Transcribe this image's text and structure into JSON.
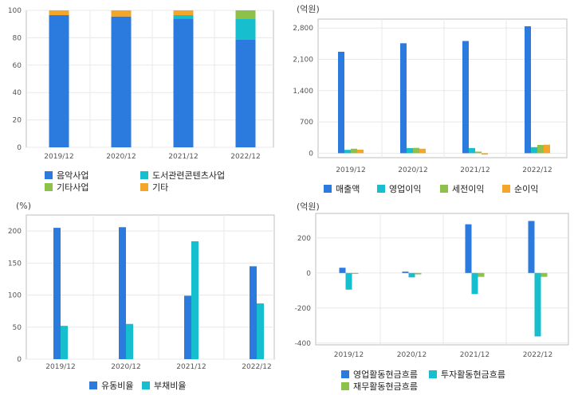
{
  "colors": {
    "blue": "#2b7bde",
    "cyan": "#17bfce",
    "green": "#8dc24a",
    "orange": "#f4a62a"
  },
  "chart_data": [
    {
      "id": "revenue-mix",
      "type": "bar",
      "stacked": true,
      "title": "",
      "unit": "",
      "categories": [
        "2019/12",
        "2020/12",
        "2021/12",
        "2022/12"
      ],
      "ylim": [
        0,
        100
      ],
      "yticks": [
        0,
        20,
        40,
        60,
        80,
        100
      ],
      "series": [
        {
          "name": "음악사업",
          "color": "#2b7bde",
          "values": [
            96.5,
            95.5,
            94,
            78.5
          ]
        },
        {
          "name": "도서관련콘텐츠사업",
          "color": "#17bfce",
          "values": [
            0,
            0,
            2.5,
            15.5
          ]
        },
        {
          "name": "기타사업",
          "color": "#8dc24a",
          "values": [
            0,
            0,
            0,
            6
          ]
        },
        {
          "name": "기타",
          "color": "#f4a62a",
          "values": [
            3.5,
            4.5,
            3.5,
            0
          ]
        }
      ],
      "legend_position": "bottom"
    },
    {
      "id": "profit",
      "type": "bar",
      "title": "",
      "unit": "(억원)",
      "categories": [
        "2019/12",
        "2020/12",
        "2021/12",
        "2022/12"
      ],
      "ylim": [
        -100,
        3000
      ],
      "yticks": [
        0,
        700,
        1400,
        2100,
        2800
      ],
      "ytick_labels": [
        "0",
        "700",
        "1,400",
        "2,100",
        "2,800"
      ],
      "series": [
        {
          "name": "매출액",
          "color": "#2b7bde",
          "values": [
            2270,
            2460,
            2510,
            2840
          ]
        },
        {
          "name": "영업이익",
          "color": "#17bfce",
          "values": [
            75,
            115,
            115,
            135
          ]
        },
        {
          "name": "세전이익",
          "color": "#8dc24a",
          "values": [
            100,
            120,
            35,
            185
          ]
        },
        {
          "name": "순이익",
          "color": "#f4a62a",
          "values": [
            80,
            100,
            -30,
            190
          ]
        }
      ],
      "legend_position": "bottom"
    },
    {
      "id": "ratios",
      "type": "bar",
      "title": "",
      "unit": "(%)",
      "categories": [
        "2019/12",
        "2020/12",
        "2021/12",
        "2022/12"
      ],
      "ylim": [
        0,
        225
      ],
      "yticks": [
        0,
        50,
        100,
        150,
        200
      ],
      "series": [
        {
          "name": "유동비율",
          "color": "#2b7bde",
          "values": [
            205,
            206,
            99,
            145
          ]
        },
        {
          "name": "부채비율",
          "color": "#17bfce",
          "values": [
            52,
            55,
            184,
            87
          ]
        }
      ],
      "legend_position": "bottom"
    },
    {
      "id": "cashflow",
      "type": "bar",
      "title": "",
      "unit": "(억원)",
      "categories": [
        "2019/12",
        "2020/12",
        "2021/12",
        "2022/12"
      ],
      "ylim": [
        -410,
        340
      ],
      "yticks": [
        -400,
        -200,
        0,
        200
      ],
      "series": [
        {
          "name": "영업활동현금흐름",
          "color": "#2b7bde",
          "values": [
            30,
            8,
            278,
            297
          ]
        },
        {
          "name": "투자활동현금흐름",
          "color": "#17bfce",
          "values": [
            -95,
            -25,
            -120,
            -362
          ]
        },
        {
          "name": "재무활동현금흐름",
          "color": "#8dc24a",
          "values": [
            -5,
            -8,
            -22,
            -22
          ]
        }
      ],
      "legend_position": "bottom"
    }
  ]
}
